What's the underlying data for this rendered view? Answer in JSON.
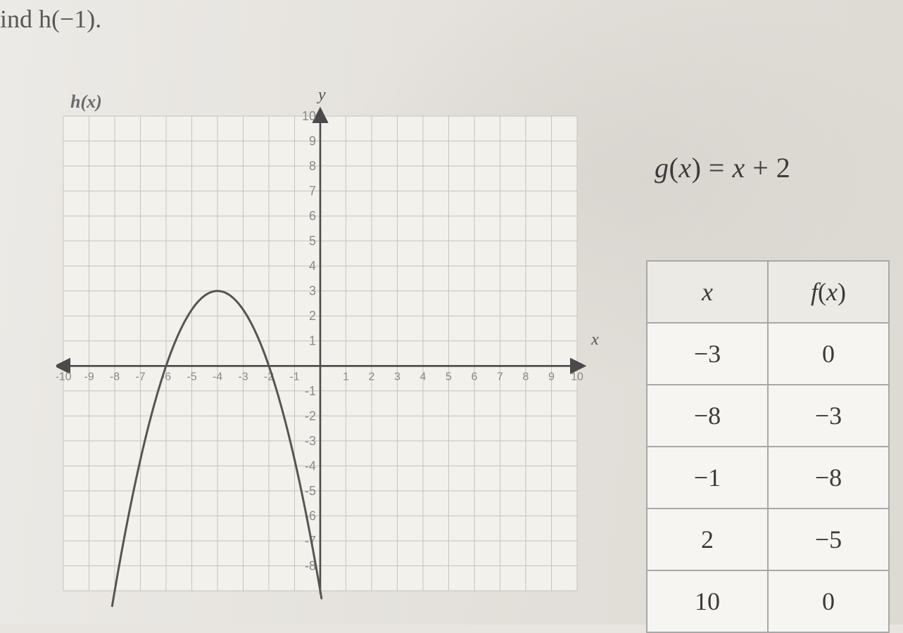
{
  "prompt_text": "ind h(−1).",
  "graph": {
    "label": "h(x)",
    "y_axis_label": "y",
    "x_axis_label": "x",
    "type": "cartesian-parabola",
    "xlim": [
      -10,
      10
    ],
    "ylim": [
      -9,
      10
    ],
    "xtick_step": 1,
    "ytick_step": 1,
    "x_ticks": [
      -10,
      -9,
      -8,
      -7,
      -6,
      -5,
      -4,
      -3,
      -2,
      -1,
      1,
      2,
      3,
      4,
      5,
      6,
      7,
      8,
      9,
      10
    ],
    "y_ticks": [
      -8,
      -7,
      -6,
      -5,
      -4,
      -3,
      -2,
      -1,
      1,
      2,
      3,
      4,
      5,
      6,
      7,
      8,
      9,
      10
    ],
    "grid_color": "#c7c4bf",
    "axis_color": "#4a4a4a",
    "background_color": "#f3f1ec",
    "curve": {
      "type": "parabola",
      "vertex": [
        -4,
        3
      ],
      "a": -0.75,
      "stroke": "#555555",
      "stroke_width": 3,
      "x_draw_range": [
        -8.1,
        0.05
      ]
    }
  },
  "equation": {
    "g_text": "g",
    "lparen": "(",
    "var": "x",
    "rparen": ")",
    "eq": " = ",
    "rhs_var": "x",
    "rhs_op": " + 2"
  },
  "table": {
    "header_x": "x",
    "header_fx_f": "f",
    "header_fx_paren": "(x)",
    "rows": [
      {
        "x": "−3",
        "fx": "0"
      },
      {
        "x": "−8",
        "fx": "−3"
      },
      {
        "x": "−1",
        "fx": "−8"
      },
      {
        "x": "2",
        "fx": "−5"
      },
      {
        "x": "10",
        "fx": "0"
      }
    ],
    "border_color": "#a8a8a8",
    "header_bg": "#eceae5",
    "cell_bg": "#f6f5f2",
    "font_size": 36
  }
}
